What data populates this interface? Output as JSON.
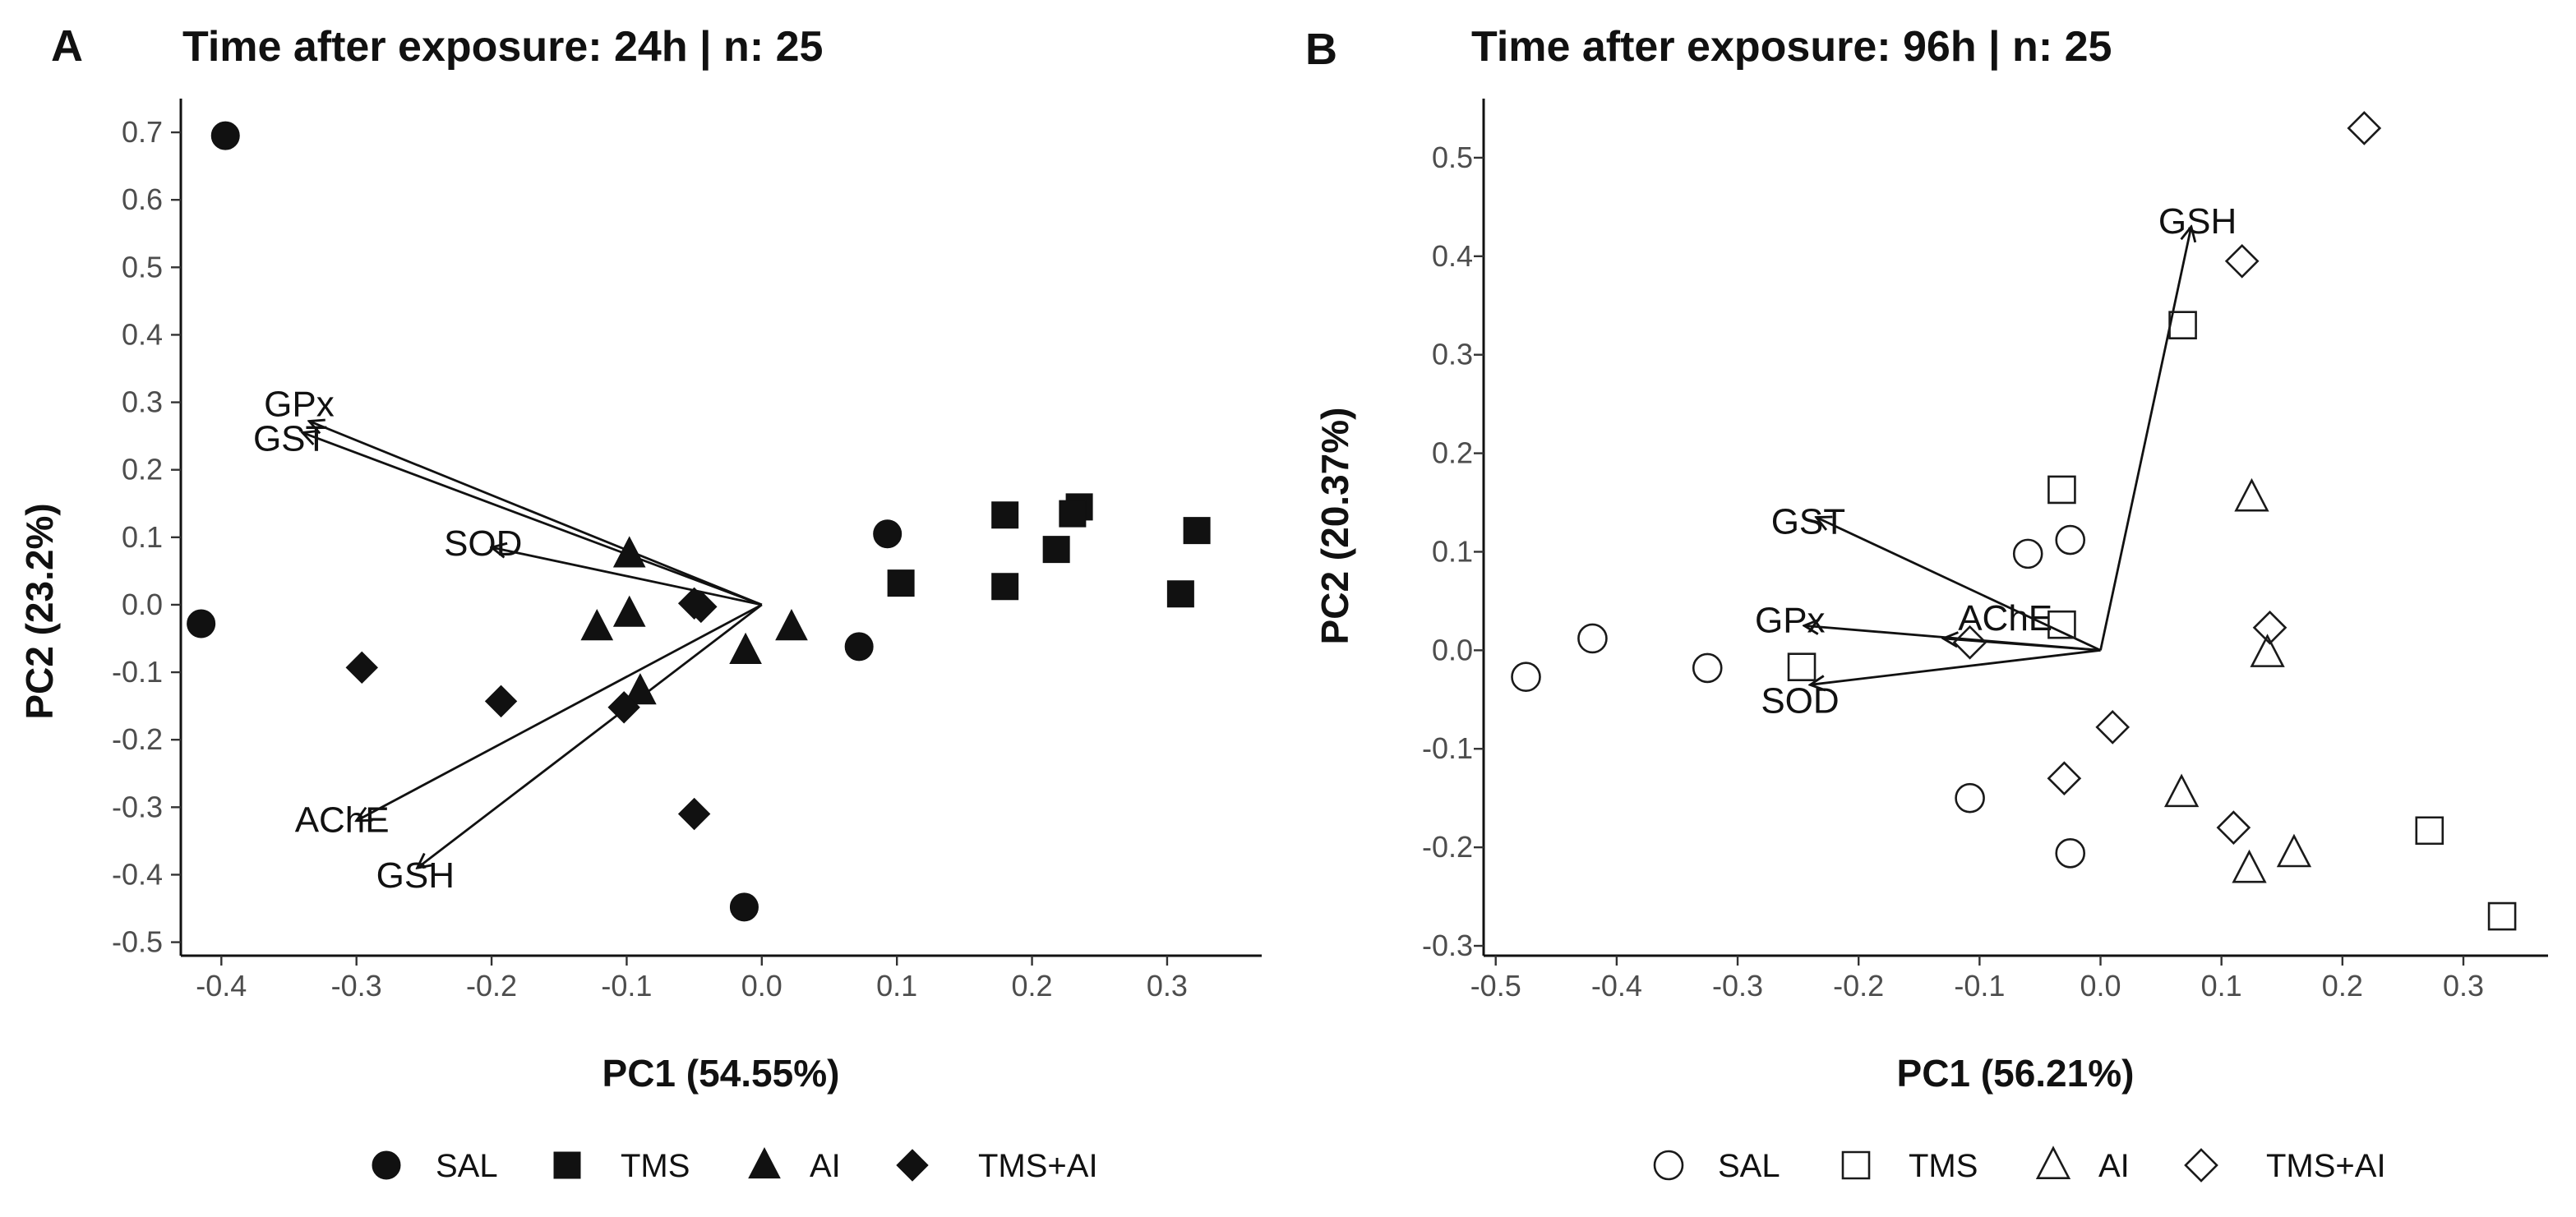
{
  "chart_data": [
    {
      "panel": "A",
      "type": "scatter",
      "title": "Time after exposure: 24h | n: 25",
      "xlabel": "PC1 (54.55%)",
      "ylabel": "PC2 (23.2%)",
      "xlim": [
        -0.43,
        0.37
      ],
      "ylim": [
        -0.52,
        0.75
      ],
      "xticks": [
        -0.4,
        -0.3,
        -0.2,
        -0.1,
        0.0,
        0.1,
        0.2,
        0.3
      ],
      "xtick_labels": [
        "-0.4",
        "-0.3",
        "-0.2",
        "-0.1",
        "0.0",
        "0.1",
        "0.2",
        "0.3"
      ],
      "yticks": [
        -0.5,
        -0.4,
        -0.3,
        -0.2,
        -0.1,
        0.0,
        0.1,
        0.2,
        0.3,
        0.4,
        0.5,
        0.6,
        0.7
      ],
      "ytick_labels": [
        "-0.5",
        "-0.4",
        "-0.3",
        "-0.2",
        "-0.1",
        "0.0",
        "0.1",
        "0.2",
        "0.3",
        "0.4",
        "0.5",
        "0.6",
        "0.7"
      ],
      "fill": "solid",
      "series": [
        {
          "name": "SAL",
          "shape": "circle",
          "points": [
            [
              -0.397,
              0.695
            ],
            [
              -0.415,
              -0.028
            ],
            [
              0.093,
              0.105
            ],
            [
              0.072,
              -0.062
            ],
            [
              -0.013,
              -0.448
            ]
          ]
        },
        {
          "name": "TMS",
          "shape": "square",
          "points": [
            [
              0.18,
              0.133
            ],
            [
              0.235,
              0.145
            ],
            [
              0.23,
              0.135
            ],
            [
              0.322,
              0.11
            ],
            [
              0.218,
              0.082
            ],
            [
              0.103,
              0.032
            ],
            [
              0.18,
              0.027
            ],
            [
              0.31,
              0.016
            ]
          ]
        },
        {
          "name": "AI",
          "shape": "triangle",
          "points": [
            [
              -0.098,
              0.075
            ],
            [
              -0.098,
              -0.013
            ],
            [
              -0.122,
              -0.033
            ],
            [
              0.022,
              -0.033
            ],
            [
              -0.012,
              -0.068
            ],
            [
              -0.09,
              -0.128
            ]
          ]
        },
        {
          "name": "TMS+AI",
          "shape": "diamond",
          "points": [
            [
              -0.05,
              0.002
            ],
            [
              -0.045,
              -0.003
            ],
            [
              -0.296,
              -0.093
            ],
            [
              -0.193,
              -0.143
            ],
            [
              -0.102,
              -0.152
            ],
            [
              -0.05,
              -0.31
            ]
          ]
        }
      ],
      "loadings": [
        {
          "name": "GPx",
          "x": -0.335,
          "y": 0.272
        },
        {
          "name": "GST",
          "x": -0.34,
          "y": 0.255
        },
        {
          "name": "SOD",
          "x": -0.2,
          "y": 0.085
        },
        {
          "name": "AChE",
          "x": -0.3,
          "y": -0.32
        },
        {
          "name": "GSH",
          "x": -0.255,
          "y": -0.39
        }
      ],
      "legend": [
        "SAL",
        "TMS",
        "AI",
        "TMS+AI"
      ]
    },
    {
      "panel": "B",
      "type": "scatter",
      "title": "Time after exposure: 96h | n: 25",
      "xlabel": "PC1 (56.21%)",
      "ylabel": "PC2 (20.37%)",
      "xlim": [
        -0.51,
        0.37
      ],
      "ylim": [
        -0.31,
        0.56
      ],
      "xticks": [
        -0.5,
        -0.4,
        -0.3,
        -0.2,
        -0.1,
        0.0,
        0.1,
        0.2,
        0.3
      ],
      "xtick_labels": [
        "-0.5",
        "-0.4",
        "-0.3",
        "-0.2",
        "-0.1",
        "0.0",
        "0.1",
        "0.2",
        "0.3"
      ],
      "yticks": [
        -0.3,
        -0.2,
        -0.1,
        0.0,
        0.1,
        0.2,
        0.3,
        0.4,
        0.5
      ],
      "ytick_labels": [
        "-0.3",
        "-0.2",
        "-0.1",
        "0.0",
        "0.1",
        "0.2",
        "0.3",
        "0.4",
        "0.5"
      ],
      "fill": "hollow",
      "series": [
        {
          "name": "SAL",
          "shape": "circle",
          "points": [
            [
              -0.475,
              -0.027
            ],
            [
              -0.42,
              0.012
            ],
            [
              -0.325,
              -0.018
            ],
            [
              -0.06,
              0.098
            ],
            [
              -0.025,
              0.112
            ],
            [
              -0.108,
              -0.15
            ],
            [
              -0.025,
              -0.206
            ]
          ]
        },
        {
          "name": "TMS",
          "shape": "square",
          "points": [
            [
              0.068,
              0.33
            ],
            [
              -0.032,
              0.163
            ],
            [
              -0.032,
              0.026
            ],
            [
              -0.247,
              -0.017
            ],
            [
              0.272,
              -0.183
            ],
            [
              0.332,
              -0.27
            ]
          ]
        },
        {
          "name": "AI",
          "shape": "triangle",
          "points": [
            [
              0.125,
              0.155
            ],
            [
              0.138,
              -0.003
            ],
            [
              0.067,
              -0.145
            ],
            [
              0.16,
              -0.206
            ],
            [
              0.123,
              -0.222
            ]
          ]
        },
        {
          "name": "TMS+AI",
          "shape": "diamond",
          "points": [
            [
              0.218,
              0.53
            ],
            [
              0.117,
              0.395
            ],
            [
              0.14,
              0.023
            ],
            [
              -0.108,
              0.008
            ],
            [
              0.01,
              -0.078
            ],
            [
              -0.03,
              -0.13
            ],
            [
              0.11,
              -0.18
            ]
          ]
        }
      ],
      "loadings": [
        {
          "name": "GSH",
          "x": 0.075,
          "y": 0.43
        },
        {
          "name": "GST",
          "x": -0.235,
          "y": 0.135
        },
        {
          "name": "AChE",
          "x": -0.13,
          "y": 0.012
        },
        {
          "name": "GPx",
          "x": -0.245,
          "y": 0.025
        },
        {
          "name": "SOD",
          "x": -0.24,
          "y": -0.035
        }
      ],
      "legend": [
        "SAL",
        "TMS",
        "AI",
        "TMS+AI"
      ]
    }
  ]
}
